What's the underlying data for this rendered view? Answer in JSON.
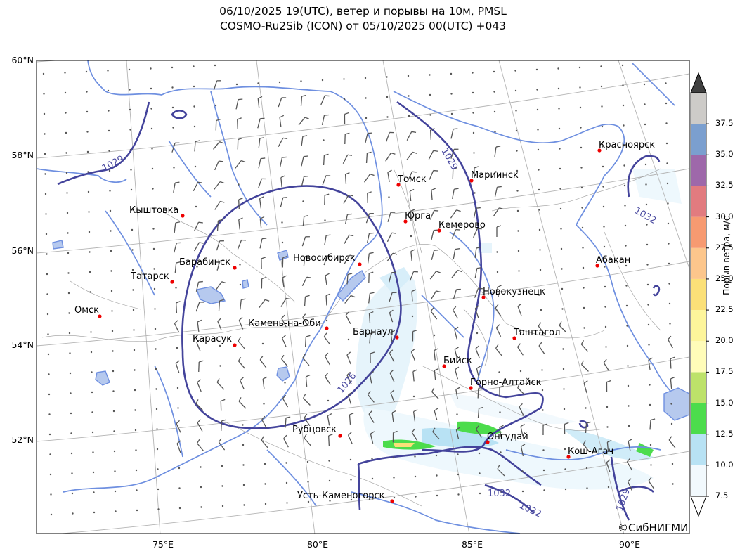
{
  "title": {
    "line1": "06/10/2025 19(UTC), ветер и порывы на 10м, PMSL",
    "line2": "COSMO-Ru2Sib (ICON) от 05/10/2025 00(UTC) +043"
  },
  "lat_labels": [
    "60°N",
    "58°N",
    "56°N",
    "54°N",
    "52°N"
  ],
  "lon_labels": [
    "75°E",
    "80°E",
    "85°E",
    "90°E"
  ],
  "cities": [
    {
      "name": "Красноярск",
      "lon": 92.9,
      "lat": 56.0
    },
    {
      "name": "Томск",
      "lon": 85.0,
      "lat": 56.5
    },
    {
      "name": "Мариинск",
      "lon": 87.7,
      "lat": 56.2
    },
    {
      "name": "Кыштовка",
      "lon": 76.6,
      "lat": 56.6
    },
    {
      "name": "Юрга",
      "lon": 84.9,
      "lat": 55.7
    },
    {
      "name": "Кемерово",
      "lon": 86.1,
      "lat": 55.4
    },
    {
      "name": "Абакан",
      "lon": 91.4,
      "lat": 53.7
    },
    {
      "name": "Барабинск",
      "lon": 78.3,
      "lat": 55.4
    },
    {
      "name": "Новосибирск",
      "lon": 82.9,
      "lat": 55.0
    },
    {
      "name": "Татарск",
      "lon": 75.9,
      "lat": 55.2
    },
    {
      "name": "Новокузнецк",
      "lon": 87.1,
      "lat": 53.8
    },
    {
      "name": "Омск",
      "lon": 73.4,
      "lat": 55.0
    },
    {
      "name": "Камень-на-Оби",
      "lon": 81.3,
      "lat": 53.8
    },
    {
      "name": "Барнаул",
      "lon": 83.8,
      "lat": 53.3
    },
    {
      "name": "Таштагол",
      "lon": 87.9,
      "lat": 52.8
    },
    {
      "name": "Карасук",
      "lon": 78.0,
      "lat": 53.7
    },
    {
      "name": "Бийск",
      "lon": 85.2,
      "lat": 52.5
    },
    {
      "name": "Горно-Алтайск",
      "lon": 85.9,
      "lat": 51.9
    },
    {
      "name": "Рубцовск",
      "lon": 81.2,
      "lat": 51.5
    },
    {
      "name": "Онгудай",
      "lon": 86.1,
      "lat": 50.7
    },
    {
      "name": "Кош-Агач",
      "lon": 88.7,
      "lat": 50.0
    },
    {
      "name": "Усть-Каменогорск",
      "lon": 82.6,
      "lat": 49.9
    }
  ],
  "isobar_labels": [
    "1029",
    "1029",
    "1032",
    "1026",
    "1032",
    "1032",
    "1029"
  ],
  "colorbar": {
    "title": "Порыв ветра, м/с",
    "ticks": [
      "7.5",
      "10.0",
      "12.5",
      "15.0",
      "17.5",
      "20.0",
      "22.5",
      "25.0",
      "27.5",
      "30.0",
      "32.5",
      "35.0",
      "37.5"
    ],
    "colors": [
      "#f2f9fd",
      "#b8e2f4",
      "#4cdc4c",
      "#bde26a",
      "#fffcb9",
      "#fdf59b",
      "#fbe078",
      "#fcc68c",
      "#f79a71",
      "#e27b7f",
      "#9e68aa",
      "#7b9fcf",
      "#cdcbc8"
    ],
    "under_color": "#ffffff",
    "over_color": "#404040"
  },
  "copyright": "©СибНИГМИ"
}
